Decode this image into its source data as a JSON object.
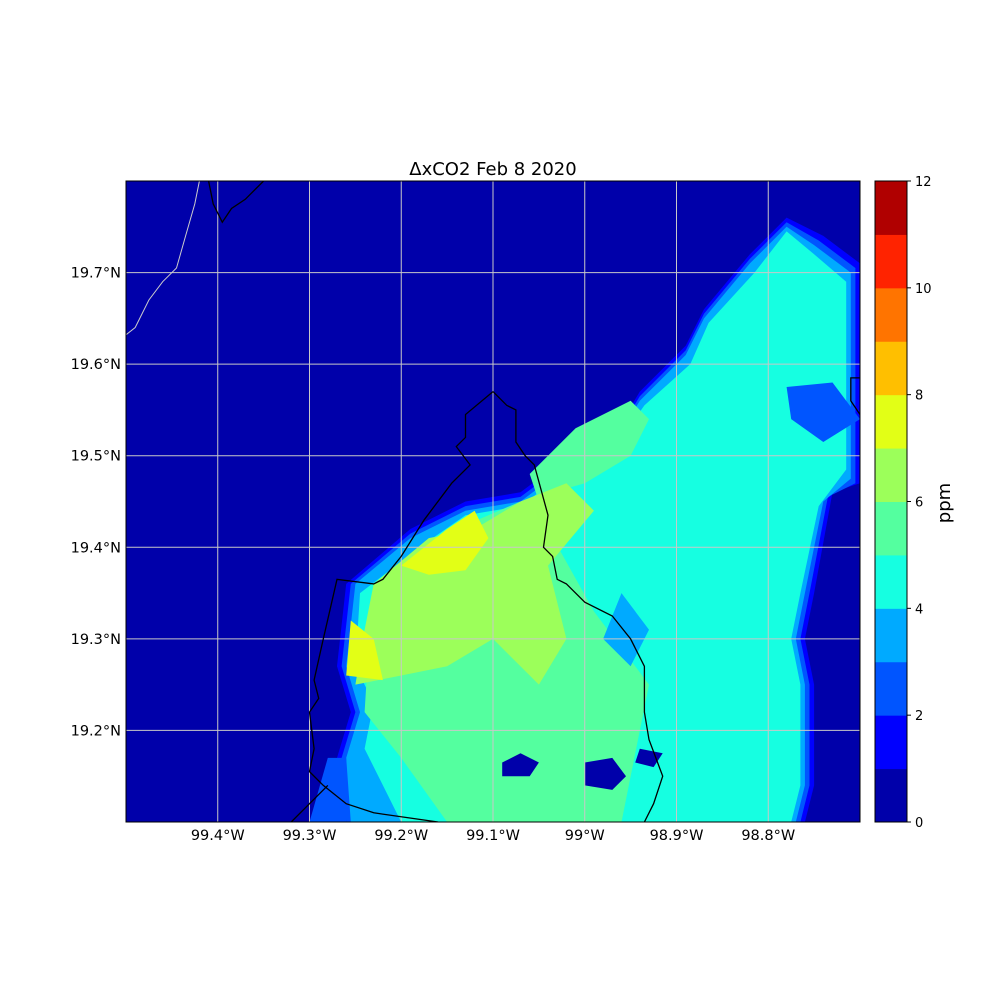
{
  "chart_data": {
    "type": "heatmap",
    "title": "ΔxCO2 Feb 8 2020",
    "x_ticks": [
      "99.4°W",
      "99.3°W",
      "99.2°W",
      "99.1°W",
      "99°W",
      "98.9°W",
      "98.8°W"
    ],
    "x_tick_values": [
      -99.4,
      -99.3,
      -99.2,
      -99.1,
      -99.0,
      -98.9,
      -98.8
    ],
    "y_ticks": [
      "19.2°N",
      "19.3°N",
      "19.4°N",
      "19.5°N",
      "19.6°N",
      "19.7°N"
    ],
    "y_tick_values": [
      19.2,
      19.3,
      19.4,
      19.5,
      19.6,
      19.7
    ],
    "xlim": [
      -99.5,
      -98.7
    ],
    "ylim": [
      19.1,
      19.8
    ],
    "grid": true,
    "colorbar": {
      "label": "ppm",
      "range": [
        0,
        12
      ],
      "levels": [
        0,
        1,
        2,
        3,
        4,
        5,
        6,
        7,
        8,
        9,
        10,
        11,
        12
      ],
      "tick_values": [
        0,
        2,
        4,
        6,
        8,
        10,
        12
      ],
      "tick_labels": [
        "0",
        "2",
        "4",
        "6",
        "8",
        "10",
        "12"
      ],
      "colors": [
        "#0000aa",
        "#0000ff",
        "#0055ff",
        "#00aaff",
        "#16ffe1",
        "#54ff9f",
        "#9cff5a",
        "#e2ff16",
        "#ffbf00",
        "#ff7400",
        "#ff2300",
        "#b00000"
      ]
    },
    "regions": [
      {
        "level": 1,
        "points": [
          [
            -99.265,
            19.1
          ],
          [
            -99.27,
            19.17
          ],
          [
            -99.255,
            19.22
          ],
          [
            -99.27,
            19.27
          ],
          [
            -99.26,
            19.36
          ],
          [
            -99.19,
            19.42
          ],
          [
            -99.13,
            19.45
          ],
          [
            -99.07,
            19.46
          ],
          [
            -99.03,
            19.49
          ],
          [
            -98.97,
            19.52
          ],
          [
            -98.94,
            19.57
          ],
          [
            -98.89,
            19.62
          ],
          [
            -98.87,
            19.66
          ],
          [
            -98.82,
            19.72
          ],
          [
            -98.78,
            19.76
          ],
          [
            -98.74,
            19.74
          ],
          [
            -98.7,
            19.71
          ],
          [
            -98.7,
            19.47
          ],
          [
            -98.73,
            19.46
          ],
          [
            -98.75,
            19.35
          ],
          [
            -98.76,
            19.3
          ],
          [
            -98.75,
            19.25
          ],
          [
            -98.75,
            19.14
          ],
          [
            -98.76,
            19.1
          ]
        ]
      },
      {
        "level": 2,
        "points": [
          [
            -99.26,
            19.1
          ],
          [
            -99.265,
            19.17
          ],
          [
            -99.25,
            19.22
          ],
          [
            -99.265,
            19.27
          ],
          [
            -99.255,
            19.36
          ],
          [
            -99.19,
            19.415
          ],
          [
            -99.13,
            19.445
          ],
          [
            -99.07,
            19.455
          ],
          [
            -99.03,
            19.485
          ],
          [
            -98.97,
            19.515
          ],
          [
            -98.94,
            19.565
          ],
          [
            -98.89,
            19.615
          ],
          [
            -98.87,
            19.655
          ],
          [
            -98.82,
            19.715
          ],
          [
            -98.78,
            19.755
          ],
          [
            -98.745,
            19.735
          ],
          [
            -98.705,
            19.705
          ],
          [
            -98.705,
            19.47
          ],
          [
            -98.735,
            19.455
          ],
          [
            -98.755,
            19.35
          ],
          [
            -98.765,
            19.3
          ],
          [
            -98.755,
            19.25
          ],
          [
            -98.755,
            19.14
          ],
          [
            -98.765,
            19.1
          ]
        ]
      },
      {
        "level": 3,
        "points": [
          [
            -99.255,
            19.1
          ],
          [
            -99.26,
            19.17
          ],
          [
            -99.245,
            19.22
          ],
          [
            -99.26,
            19.27
          ],
          [
            -99.25,
            19.36
          ],
          [
            -99.19,
            19.41
          ],
          [
            -99.13,
            19.44
          ],
          [
            -99.07,
            19.45
          ],
          [
            -99.03,
            19.48
          ],
          [
            -98.97,
            19.51
          ],
          [
            -98.94,
            19.56
          ],
          [
            -98.89,
            19.61
          ],
          [
            -98.87,
            19.65
          ],
          [
            -98.82,
            19.71
          ],
          [
            -98.78,
            19.75
          ],
          [
            -98.75,
            19.73
          ],
          [
            -98.71,
            19.7
          ],
          [
            -98.71,
            19.475
          ],
          [
            -98.74,
            19.45
          ],
          [
            -98.76,
            19.35
          ],
          [
            -98.77,
            19.3
          ],
          [
            -98.76,
            19.25
          ],
          [
            -98.76,
            19.14
          ],
          [
            -98.77,
            19.1
          ]
        ]
      },
      {
        "level": 4,
        "points": [
          [
            -99.2,
            19.1
          ],
          [
            -99.24,
            19.18
          ],
          [
            -99.23,
            19.23
          ],
          [
            -99.25,
            19.27
          ],
          [
            -99.245,
            19.35
          ],
          [
            -99.18,
            19.4
          ],
          [
            -99.13,
            19.435
          ],
          [
            -99.07,
            19.445
          ],
          [
            -99.03,
            19.475
          ],
          [
            -98.97,
            19.505
          ],
          [
            -98.935,
            19.555
          ],
          [
            -98.885,
            19.6
          ],
          [
            -98.865,
            19.645
          ],
          [
            -98.815,
            19.7
          ],
          [
            -98.78,
            19.745
          ],
          [
            -98.75,
            19.72
          ],
          [
            -98.715,
            19.69
          ],
          [
            -98.715,
            19.485
          ],
          [
            -98.745,
            19.445
          ],
          [
            -98.765,
            19.35
          ],
          [
            -98.775,
            19.3
          ],
          [
            -98.765,
            19.25
          ],
          [
            -98.765,
            19.14
          ],
          [
            -98.775,
            19.1
          ]
        ]
      },
      {
        "level": 5,
        "points": [
          [
            -99.15,
            19.1
          ],
          [
            -99.2,
            19.17
          ],
          [
            -99.24,
            19.22
          ],
          [
            -99.235,
            19.3
          ],
          [
            -99.2,
            19.37
          ],
          [
            -99.14,
            19.42
          ],
          [
            -99.07,
            19.45
          ],
          [
            -99.0,
            19.47
          ],
          [
            -98.95,
            19.5
          ],
          [
            -98.93,
            19.54
          ],
          [
            -98.95,
            19.56
          ],
          [
            -99.01,
            19.53
          ],
          [
            -99.06,
            19.48
          ],
          [
            -99.04,
            19.42
          ],
          [
            -98.99,
            19.33
          ],
          [
            -98.93,
            19.25
          ],
          [
            -98.96,
            19.1
          ]
        ]
      },
      {
        "level": 6,
        "points": [
          [
            -99.24,
            19.31
          ],
          [
            -99.23,
            19.36
          ],
          [
            -99.17,
            19.41
          ],
          [
            -99.12,
            19.42
          ],
          [
            -99.07,
            19.45
          ],
          [
            -99.02,
            19.47
          ],
          [
            -98.99,
            19.44
          ],
          [
            -99.04,
            19.38
          ],
          [
            -99.02,
            19.3
          ],
          [
            -99.05,
            19.25
          ],
          [
            -99.1,
            19.3
          ],
          [
            -99.15,
            19.27
          ],
          [
            -99.2,
            19.26
          ],
          [
            -99.25,
            19.25
          ]
        ]
      },
      {
        "level": 7,
        "points": [
          [
            -99.2,
            19.38
          ],
          [
            -99.15,
            19.42
          ],
          [
            -99.12,
            19.44
          ],
          [
            -99.105,
            19.41
          ],
          [
            -99.13,
            19.375
          ],
          [
            -99.17,
            19.37
          ]
        ]
      },
      {
        "level": 7,
        "points": [
          [
            -99.255,
            19.32
          ],
          [
            -99.26,
            19.26
          ],
          [
            -99.22,
            19.255
          ],
          [
            -99.23,
            19.3
          ]
        ]
      }
    ],
    "holes": [
      {
        "level": 0,
        "points": [
          [
            -99.09,
            19.165
          ],
          [
            -99.07,
            19.175
          ],
          [
            -99.05,
            19.165
          ],
          [
            -99.06,
            19.15
          ],
          [
            -99.09,
            19.15
          ]
        ]
      },
      {
        "level": 0,
        "points": [
          [
            -99.0,
            19.165
          ],
          [
            -98.97,
            19.17
          ],
          [
            -98.955,
            19.15
          ],
          [
            -98.97,
            19.135
          ],
          [
            -99.0,
            19.14
          ]
        ]
      },
      {
        "level": 0,
        "points": [
          [
            -98.94,
            19.18
          ],
          [
            -98.915,
            19.175
          ],
          [
            -98.925,
            19.16
          ],
          [
            -98.945,
            19.165
          ]
        ]
      },
      {
        "level": 2,
        "points": [
          [
            -98.78,
            19.575
          ],
          [
            -98.73,
            19.58
          ],
          [
            -98.7,
            19.54
          ],
          [
            -98.74,
            19.515
          ],
          [
            -98.775,
            19.54
          ]
        ]
      },
      {
        "level": 3,
        "points": [
          [
            -98.98,
            19.3
          ],
          [
            -98.96,
            19.35
          ],
          [
            -98.93,
            19.31
          ],
          [
            -98.95,
            19.27
          ]
        ]
      },
      {
        "level": 2,
        "points": [
          [
            -99.3,
            19.1
          ],
          [
            -99.28,
            19.17
          ],
          [
            -99.26,
            19.17
          ],
          [
            -99.26,
            19.1
          ]
        ]
      }
    ],
    "boundary_lines": [
      {
        "color": "#000000",
        "points": [
          [
            -99.1,
            19.57
          ],
          [
            -99.085,
            19.555
          ],
          [
            -99.075,
            19.55
          ],
          [
            -99.075,
            19.515
          ],
          [
            -99.065,
            19.5
          ],
          [
            -99.055,
            19.49
          ],
          [
            -99.04,
            19.435
          ],
          [
            -99.045,
            19.4
          ],
          [
            -99.035,
            19.39
          ],
          [
            -99.03,
            19.365
          ],
          [
            -99.02,
            19.36
          ],
          [
            -99.0,
            19.34
          ],
          [
            -98.97,
            19.325
          ],
          [
            -98.95,
            19.3
          ],
          [
            -98.935,
            19.27
          ],
          [
            -98.935,
            19.22
          ],
          [
            -98.93,
            19.19
          ],
          [
            -98.915,
            19.15
          ],
          [
            -98.925,
            19.12
          ],
          [
            -98.935,
            19.1
          ]
        ]
      },
      {
        "color": "#000000",
        "points": [
          [
            -99.1,
            19.57
          ],
          [
            -99.13,
            19.545
          ],
          [
            -99.13,
            19.52
          ],
          [
            -99.14,
            19.51
          ],
          [
            -99.125,
            19.49
          ],
          [
            -99.145,
            19.47
          ],
          [
            -99.175,
            19.43
          ],
          [
            -99.2,
            19.39
          ],
          [
            -99.22,
            19.365
          ],
          [
            -99.23,
            19.36
          ],
          [
            -99.27,
            19.365
          ],
          [
            -99.285,
            19.3
          ],
          [
            -99.295,
            19.255
          ],
          [
            -99.29,
            19.235
          ],
          [
            -99.3,
            19.22
          ],
          [
            -99.295,
            19.18
          ],
          [
            -99.3,
            19.155
          ],
          [
            -99.285,
            19.14
          ],
          [
            -99.26,
            19.12
          ],
          [
            -99.23,
            19.11
          ],
          [
            -99.16,
            19.1
          ]
        ]
      },
      {
        "color": "#000000",
        "points": [
          [
            -99.28,
            19.14
          ],
          [
            -99.3,
            19.12
          ],
          [
            -99.32,
            19.1
          ]
        ]
      },
      {
        "color": "#000000",
        "points": [
          [
            -99.41,
            19.8
          ],
          [
            -99.405,
            19.775
          ],
          [
            -99.395,
            19.755
          ],
          [
            -99.385,
            19.77
          ],
          [
            -99.37,
            19.78
          ],
          [
            -99.35,
            19.8
          ]
        ]
      },
      {
        "color": "#000000",
        "points": [
          [
            -98.7,
            19.585
          ],
          [
            -98.71,
            19.585
          ],
          [
            -98.71,
            19.56
          ],
          [
            -98.7,
            19.545
          ]
        ]
      },
      {
        "color": "#cccccc",
        "points": [
          [
            -99.42,
            19.8
          ],
          [
            -99.425,
            19.775
          ],
          [
            -99.435,
            19.74
          ],
          [
            -99.445,
            19.705
          ],
          [
            -99.46,
            19.69
          ],
          [
            -99.475,
            19.67
          ],
          [
            -99.49,
            19.64
          ],
          [
            -99.5,
            19.632
          ]
        ]
      }
    ]
  }
}
